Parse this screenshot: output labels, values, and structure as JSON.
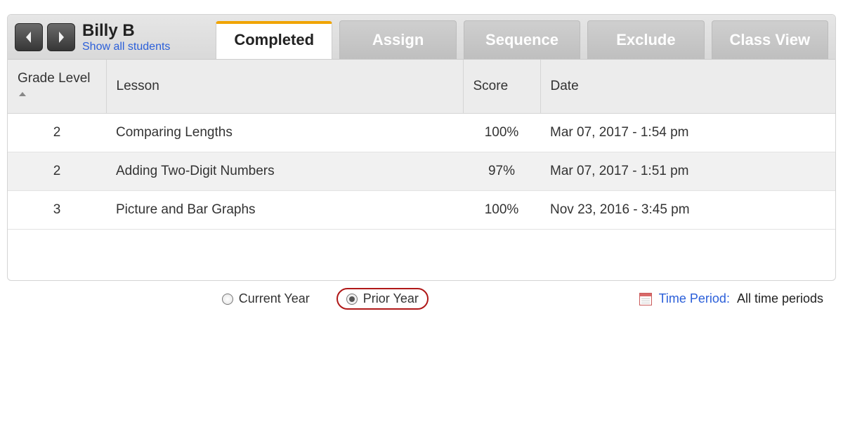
{
  "header": {
    "student_name": "Billy B",
    "show_all_link": "Show all students"
  },
  "tabs": [
    {
      "label": "Completed",
      "active": true
    },
    {
      "label": "Assign",
      "active": false
    },
    {
      "label": "Sequence",
      "active": false
    },
    {
      "label": "Exclude",
      "active": false
    },
    {
      "label": "Class View",
      "active": false
    }
  ],
  "table": {
    "columns": [
      {
        "label": "Grade Level",
        "key": "grade",
        "sortable": true
      },
      {
        "label": "Lesson",
        "key": "lesson"
      },
      {
        "label": "Score",
        "key": "score"
      },
      {
        "label": "Date",
        "key": "date"
      }
    ],
    "rows": [
      {
        "grade": "2",
        "lesson": "Comparing Lengths",
        "score": "100%",
        "date": "Mar 07, 2017 - 1:54 pm"
      },
      {
        "grade": "2",
        "lesson": "Adding Two-Digit Numbers",
        "score": "97%",
        "date": "Mar 07, 2017 - 1:51 pm"
      },
      {
        "grade": "3",
        "lesson": "Picture and Bar Graphs",
        "score": "100%",
        "date": "Nov 23, 2016 - 3:45 pm"
      }
    ]
  },
  "footer": {
    "year_filter": {
      "options": [
        {
          "label": "Current Year",
          "selected": false,
          "highlight": false
        },
        {
          "label": "Prior Year",
          "selected": true,
          "highlight": true
        }
      ]
    },
    "time_period_label": "Time Period:",
    "time_period_value": "All time periods"
  },
  "colors": {
    "accent_orange": "#f0a400",
    "link_blue": "#2b5fd9",
    "highlight_red": "#b01818",
    "header_bg": "#e0e0e0",
    "row_alt_bg": "#f1f1f1"
  }
}
